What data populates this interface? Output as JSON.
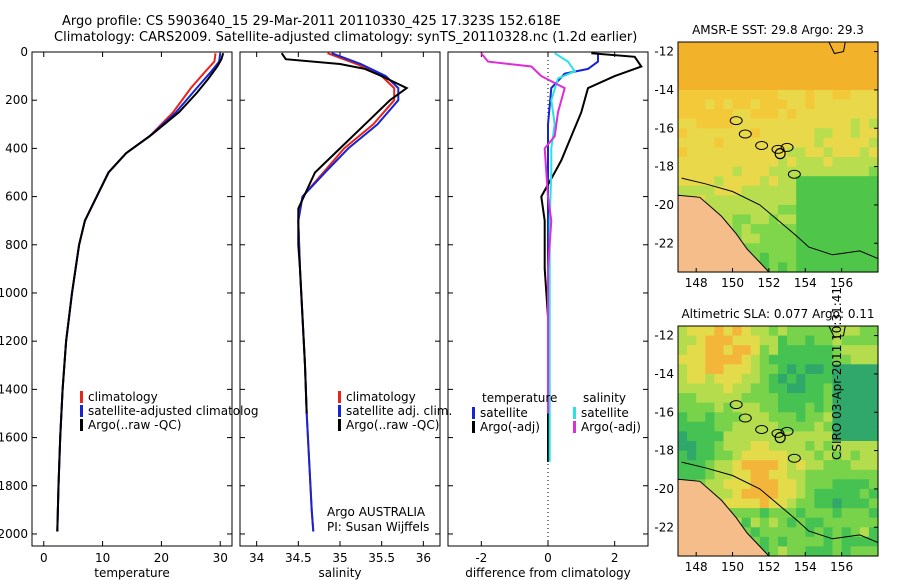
{
  "header": {
    "line1": "Argo profile: CS 5903640_15 29-Mar-2011 20110330_425 17.323S 152.618E",
    "line2": "Climatology: CARS2009. Satellite-adjusted climatology: synTS_20110328.nc (1.2d earlier)"
  },
  "credit": {
    "argo_line1": "Argo AUSTRALIA",
    "argo_line2": "PI: Susan Wijffels",
    "side": "CSIRO 03-Apr-2011 10:31:41"
  },
  "colors": {
    "red": "#e8251d",
    "blue": "#1624d4",
    "black": "#000000",
    "cyan": "#29e3e3",
    "magenta": "#e02bd8",
    "land": "#f5bd8a"
  },
  "chart_data": [
    {
      "type": "line",
      "xlabel": "temperature",
      "ylabel": "",
      "xlim": [
        -2,
        32
      ],
      "ylim": [
        2050,
        0
      ],
      "yreverse": true,
      "xticks": [
        0,
        10,
        20,
        30
      ],
      "yticks": [
        0,
        200,
        400,
        600,
        800,
        1000,
        1200,
        1400,
        1600,
        1800,
        2000
      ],
      "legend": [
        "climatology",
        "satellite-adjusted climatolog",
        "Argo(..raw -QC)"
      ],
      "series": [
        {
          "name": "climatology",
          "color": "red",
          "points": [
            [
              29.2,
              5
            ],
            [
              29,
              40
            ],
            [
              27.5,
              80
            ],
            [
              25,
              150
            ],
            [
              22,
              250
            ],
            [
              18,
              350
            ],
            [
              14,
              420
            ],
            [
              11,
              500
            ],
            [
              9,
              600
            ],
            [
              7,
              700
            ],
            [
              6,
              800
            ],
            [
              4.8,
              1000
            ],
            [
              3.8,
              1200
            ],
            [
              3.2,
              1400
            ],
            [
              2.8,
              1600
            ],
            [
              2.5,
              1800
            ],
            [
              2.3,
              1990
            ]
          ]
        },
        {
          "name": "satellite-adjusted climatolog",
          "color": "blue",
          "points": [
            [
              30,
              5
            ],
            [
              29.8,
              40
            ],
            [
              28.5,
              80
            ],
            [
              26,
              150
            ],
            [
              22.5,
              250
            ],
            [
              18,
              350
            ],
            [
              14,
              420
            ],
            [
              11,
              500
            ],
            [
              9,
              600
            ],
            [
              7,
              700
            ],
            [
              6,
              800
            ],
            [
              4.8,
              1000
            ],
            [
              3.8,
              1200
            ],
            [
              3.2,
              1400
            ],
            [
              2.8,
              1600
            ],
            [
              2.5,
              1800
            ],
            [
              2.3,
              1990
            ]
          ]
        },
        {
          "name": "Argo(..raw -QC)",
          "color": "black",
          "points": [
            [
              30.5,
              5
            ],
            [
              30.2,
              30
            ],
            [
              29.5,
              60
            ],
            [
              28,
              110
            ],
            [
              26,
              170
            ],
            [
              23,
              250
            ],
            [
              18.5,
              340
            ],
            [
              14,
              420
            ],
            [
              11,
              500
            ],
            [
              9,
              600
            ],
            [
              7,
              700
            ],
            [
              6,
              800
            ],
            [
              4.8,
              1000
            ],
            [
              3.8,
              1200
            ],
            [
              3.2,
              1400
            ],
            [
              2.8,
              1600
            ],
            [
              2.5,
              1800
            ],
            [
              2.3,
              1990
            ]
          ]
        }
      ]
    },
    {
      "type": "line",
      "xlabel": "salinity",
      "ylabel": "",
      "xlim": [
        33.8,
        36.2
      ],
      "ylim": [
        2050,
        0
      ],
      "yreverse": true,
      "xticks": [
        34,
        34.5,
        35,
        35.5,
        36
      ],
      "legend": [
        "climatology",
        "satellite adj. clim.",
        "Argo(..raw -QC)"
      ],
      "series": [
        {
          "name": "climatology",
          "color": "red",
          "points": [
            [
              34.85,
              5
            ],
            [
              35.2,
              50
            ],
            [
              35.5,
              100
            ],
            [
              35.65,
              150
            ],
            [
              35.65,
              200
            ],
            [
              35.4,
              300
            ],
            [
              35.05,
              400
            ],
            [
              34.8,
              500
            ],
            [
              34.55,
              600
            ],
            [
              34.5,
              700
            ],
            [
              34.52,
              900
            ],
            [
              34.55,
              1100
            ],
            [
              34.58,
              1300
            ],
            [
              34.6,
              1500
            ],
            [
              34.63,
              1700
            ],
            [
              34.66,
              1900
            ],
            [
              34.68,
              1990
            ]
          ]
        },
        {
          "name": "satellite adj. clim.",
          "color": "blue",
          "points": [
            [
              34.9,
              5
            ],
            [
              35.25,
              50
            ],
            [
              35.55,
              100
            ],
            [
              35.7,
              150
            ],
            [
              35.7,
              200
            ],
            [
              35.45,
              300
            ],
            [
              35.1,
              400
            ],
            [
              34.82,
              500
            ],
            [
              34.55,
              600
            ],
            [
              34.5,
              700
            ],
            [
              34.52,
              900
            ],
            [
              34.55,
              1100
            ],
            [
              34.58,
              1300
            ],
            [
              34.6,
              1500
            ],
            [
              34.63,
              1700
            ],
            [
              34.66,
              1900
            ],
            [
              34.68,
              1990
            ]
          ]
        },
        {
          "name": "Argo(..raw -QC)",
          "color": "black",
          "points": [
            [
              34.3,
              5
            ],
            [
              34.35,
              30
            ],
            [
              35.0,
              50
            ],
            [
              35.3,
              70
            ],
            [
              35.5,
              100
            ],
            [
              35.8,
              150
            ],
            [
              35.6,
              200
            ],
            [
              35.3,
              300
            ],
            [
              35.0,
              400
            ],
            [
              34.7,
              500
            ],
            [
              34.5,
              650
            ],
            [
              34.5,
              800
            ],
            [
              34.52,
              900
            ],
            [
              34.55,
              1100
            ],
            [
              34.58,
              1300
            ],
            [
              34.6,
              1500
            ]
          ]
        }
      ]
    },
    {
      "type": "line",
      "xlabel": "difference from climatology",
      "ylabel": "",
      "xlim": [
        -3,
        3
      ],
      "ylim": [
        2050,
        0
      ],
      "yreverse": true,
      "xticks": [
        -2,
        0,
        2
      ],
      "zero_line": "dotted",
      "legend_left_title": "temperature",
      "legend_right_title": "salinity",
      "legend": [
        "satellite",
        "Argo(-adj)",
        "satellite",
        "Argo(-adj)"
      ],
      "series": [
        {
          "name": "temperature satellite",
          "color": "blue",
          "points": [
            [
              1.5,
              5
            ],
            [
              1.5,
              40
            ],
            [
              1.2,
              70
            ],
            [
              0.5,
              90
            ],
            [
              0.1,
              150
            ],
            [
              0,
              300
            ],
            [
              0,
              500
            ],
            [
              0,
              700
            ],
            [
              0,
              1000
            ],
            [
              0,
              1200
            ],
            [
              0,
              1400
            ],
            [
              0,
              1600
            ],
            [
              0,
              1700
            ]
          ]
        },
        {
          "name": "temperature Argo(-adj)",
          "color": "black",
          "points": [
            [
              1.3,
              5
            ],
            [
              2.6,
              20
            ],
            [
              2.8,
              60
            ],
            [
              2.0,
              100
            ],
            [
              1.2,
              150
            ],
            [
              1.0,
              250
            ],
            [
              0.7,
              350
            ],
            [
              0.4,
              450
            ],
            [
              0.2,
              500
            ],
            [
              -0.2,
              600
            ],
            [
              -0.1,
              700
            ],
            [
              -0.1,
              900
            ],
            [
              0,
              1100
            ],
            [
              0,
              1300
            ],
            [
              0,
              1500
            ],
            [
              0,
              1700
            ]
          ]
        },
        {
          "name": "salinity satellite",
          "color": "cyan",
          "points": [
            [
              0.2,
              5
            ],
            [
              0.6,
              40
            ],
            [
              0.8,
              80
            ],
            [
              0.3,
              110
            ],
            [
              0.1,
              200
            ],
            [
              0.2,
              300
            ],
            [
              0.1,
              400
            ],
            [
              0.1,
              500
            ],
            [
              0.05,
              700
            ],
            [
              0.05,
              1000
            ],
            [
              0.05,
              1300
            ],
            [
              0.05,
              1700
            ]
          ]
        },
        {
          "name": "salinity Argo(-adj)",
          "color": "magenta",
          "points": [
            [
              -2,
              5
            ],
            [
              -1.8,
              40
            ],
            [
              -0.5,
              60
            ],
            [
              -0.2,
              100
            ],
            [
              0.5,
              150
            ],
            [
              0.3,
              250
            ],
            [
              0.2,
              350
            ],
            [
              -0.1,
              400
            ],
            [
              0,
              600
            ],
            [
              0.1,
              700
            ],
            [
              0,
              900
            ],
            [
              0,
              1100
            ],
            [
              0,
              1300
            ],
            [
              0,
              1500
            ]
          ]
        }
      ]
    },
    {
      "type": "heatmap",
      "title": "AMSR-E SST: 29.8 Argo: 29.3",
      "xlim": [
        147,
        158
      ],
      "ylim": [
        -23.5,
        -11.5
      ],
      "xticks": [
        148,
        150,
        152,
        154,
        156
      ],
      "yticks": [
        -12,
        -14,
        -16,
        -18,
        -20,
        -22
      ]
    },
    {
      "type": "heatmap",
      "title": "Altimetric SLA: 0.077 Argo: 0.11",
      "xlim": [
        147,
        158
      ],
      "ylim": [
        -23.5,
        -11.5
      ],
      "xticks": [
        148,
        150,
        152,
        154,
        156
      ],
      "yticks": [
        -12,
        -14,
        -16,
        -18,
        -20,
        -22
      ]
    }
  ]
}
